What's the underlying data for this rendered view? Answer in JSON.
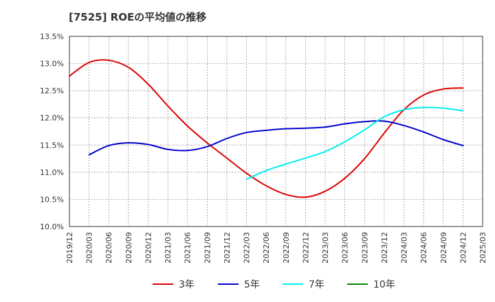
{
  "chart_data": {
    "type": "line",
    "title": "[7525]  ROEの平均値の推移",
    "xlabel": "",
    "ylabel": "",
    "ylim": [
      10.0,
      13.5
    ],
    "ytick_values": [
      10.0,
      10.5,
      11.0,
      11.5,
      12.0,
      12.5,
      13.0,
      13.5
    ],
    "ytick_labels": [
      "10.0%",
      "10.5%",
      "11.0%",
      "11.5%",
      "12.0%",
      "12.5%",
      "13.0%",
      "13.5%"
    ],
    "grid": true,
    "legend_position": "bottom",
    "categories": [
      "2019/12",
      "2020/03",
      "2020/06",
      "2020/09",
      "2020/12",
      "2021/03",
      "2021/06",
      "2021/09",
      "2021/12",
      "2022/03",
      "2022/06",
      "2022/09",
      "2022/12",
      "2023/03",
      "2023/06",
      "2023/09",
      "2023/12",
      "2024/03",
      "2024/06",
      "2024/09",
      "2024/12",
      "2025/03"
    ],
    "series": [
      {
        "name": "3年",
        "color": "#dd0000",
        "values": [
          12.77,
          13.02,
          13.06,
          12.93,
          12.62,
          12.22,
          11.85,
          11.54,
          11.26,
          10.98,
          10.75,
          10.59,
          10.54,
          10.65,
          10.89,
          11.25,
          11.72,
          12.15,
          12.42,
          12.53,
          12.55,
          null
        ]
      },
      {
        "name": "5年",
        "color": "#0000cc",
        "values": [
          null,
          11.32,
          11.49,
          11.54,
          11.51,
          11.42,
          11.4,
          11.47,
          11.62,
          11.73,
          11.77,
          11.8,
          11.81,
          11.83,
          11.89,
          11.93,
          11.94,
          11.86,
          11.74,
          11.6,
          11.49,
          null
        ]
      },
      {
        "name": "7年",
        "color": "#00eeee",
        "values": [
          null,
          null,
          null,
          null,
          null,
          null,
          null,
          null,
          null,
          10.87,
          11.03,
          11.15,
          11.26,
          11.38,
          11.56,
          11.78,
          12.02,
          12.15,
          12.19,
          12.18,
          12.13,
          null
        ]
      },
      {
        "name": "10年",
        "color": "#008800",
        "values": [
          null,
          null,
          null,
          null,
          null,
          null,
          null,
          null,
          null,
          null,
          null,
          null,
          null,
          null,
          null,
          null,
          null,
          null,
          null,
          null,
          null,
          null
        ]
      }
    ]
  }
}
